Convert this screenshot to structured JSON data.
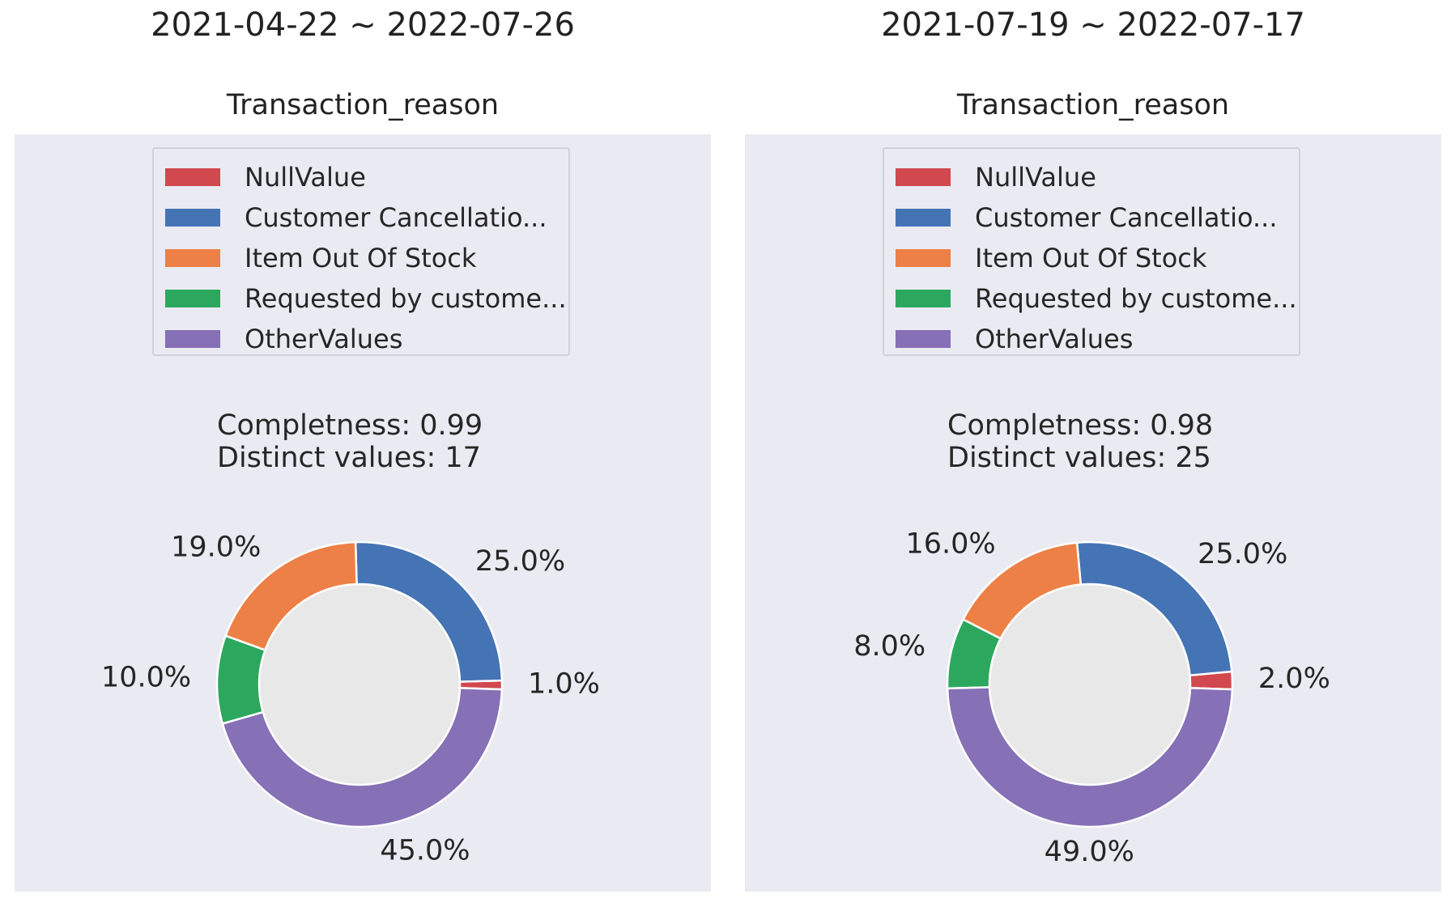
{
  "chart_data": [
    {
      "type": "pie",
      "period": "2021-04-22 ~ 2022-07-26",
      "title": "Transaction_reason",
      "legend_position": "top-center",
      "completeness_text": "Completness: 0.99",
      "distinct_text": "Distinct values: 17",
      "categories": [
        "NullValue",
        "Customer Cancellatio...",
        "Item Out Of Stock",
        "Requested by custome...",
        "OtherValues"
      ],
      "values": [
        1.0,
        25.0,
        19.0,
        10.0,
        45.0
      ],
      "labels": [
        "1.0%",
        "25.0%",
        "19.0%",
        "10.0%",
        "45.0%"
      ],
      "colors": [
        "#d1484f",
        "#4574b4",
        "#ed8046",
        "#2ba85e",
        "#8670b6"
      ],
      "donut_center_color": "#e8e8e8"
    },
    {
      "type": "pie",
      "period": "2021-07-19 ~ 2022-07-17",
      "title": "Transaction_reason",
      "legend_position": "top-center",
      "completeness_text": "Completness: 0.98",
      "distinct_text": "Distinct values: 25",
      "categories": [
        "NullValue",
        "Customer Cancellatio...",
        "Item Out Of Stock",
        "Requested by custome...",
        "OtherValues"
      ],
      "values": [
        2.0,
        25.0,
        16.0,
        8.0,
        49.0
      ],
      "labels": [
        "2.0%",
        "25.0%",
        "16.0%",
        "8.0%",
        "49.0%"
      ],
      "colors": [
        "#d1484f",
        "#4574b4",
        "#ed8046",
        "#2ba85e",
        "#8670b6"
      ],
      "donut_center_color": "#e8e8e8"
    }
  ]
}
